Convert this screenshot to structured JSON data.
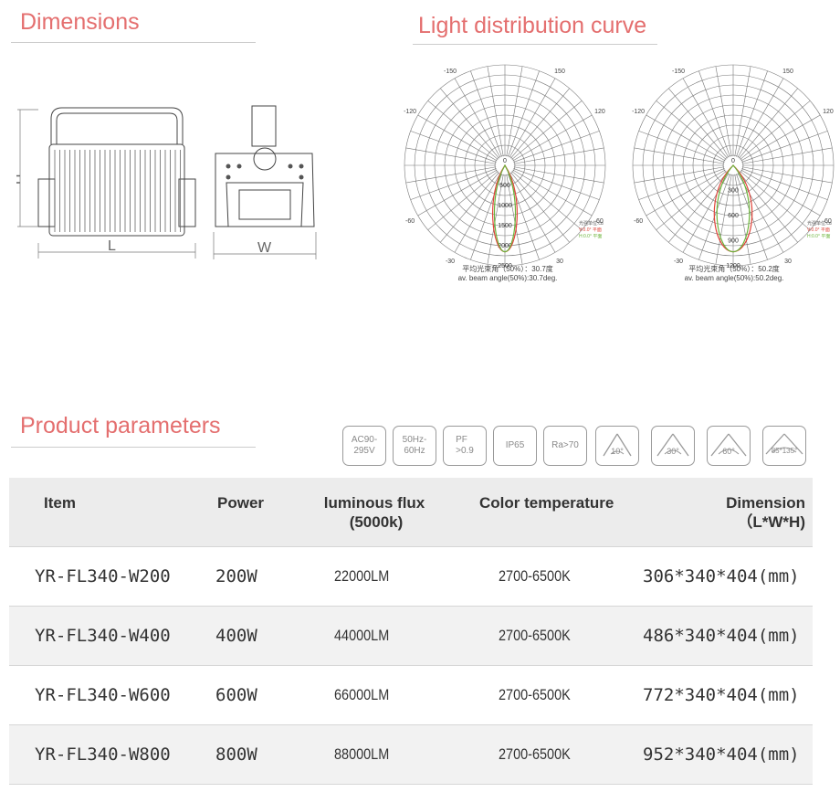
{
  "sections": {
    "dimensions": "Dimensions",
    "light_curve": "Light distribution curve",
    "product_parameters": "Product parameters"
  },
  "drawing_labels": {
    "h": "H",
    "l": "L",
    "w": "W"
  },
  "polar_labels": {
    "top": "-/+180",
    "deg": [
      "-150",
      "150",
      "-120",
      "120",
      "-90",
      "90",
      "-60",
      "60",
      "-30",
      "30",
      "0"
    ]
  },
  "curve1": {
    "rings": [
      "500",
      "1000",
      "1500",
      "2000",
      "2500"
    ],
    "legend": [
      "光强单位:cd",
      "V:0.0° 平面",
      "H:0.0° 平面"
    ],
    "caption_cn": "平均光束角（50%）：30.7度",
    "caption_en": "av. beam angle(50%):30.7deg."
  },
  "curve2": {
    "rings": [
      "300",
      "600",
      "900",
      "1200"
    ],
    "legend": [
      "光强单位:cd",
      "V:0.0° 平面",
      "H:0.0° 平面"
    ],
    "caption_cn": "平均光束角（50%）：50.2度",
    "caption_en": "av. beam angle(50%):50.2deg."
  },
  "badges": [
    {
      "text": "AC90-\n295V"
    },
    {
      "text": "50Hz-\n60Hz"
    },
    {
      "text": "PF\n>0.9"
    },
    {
      "text": "IP65"
    },
    {
      "text": "Ra>70"
    },
    {
      "text": "10°"
    },
    {
      "text": "30°"
    },
    {
      "text": "60°"
    },
    {
      "text": "85*135°"
    }
  ],
  "colors": {
    "title": "#e46f6f",
    "curve_v": "#e0443a",
    "curve_h": "#6bb33a"
  },
  "table": {
    "headers": {
      "item": "Item",
      "power": "Power",
      "flux": "luminous flux",
      "flux_unit": "(5000k)",
      "cct": "Color temperature",
      "dim": "Dimension",
      "dim_unit": "（L*W*H)"
    },
    "rows": [
      {
        "item": "YR-FL340-W200",
        "power": "200W",
        "flux": "22000LM",
        "cct": "2700-6500K",
        "dim": "306*340*404(mm)"
      },
      {
        "item": "YR-FL340-W400",
        "power": "400W",
        "flux": "44000LM",
        "cct": "2700-6500K",
        "dim": "486*340*404(mm)"
      },
      {
        "item": "YR-FL340-W600",
        "power": "600W",
        "flux": "66000LM",
        "cct": "2700-6500K",
        "dim": "772*340*404(mm)"
      },
      {
        "item": "YR-FL340-W800",
        "power": "800W",
        "flux": "88000LM",
        "cct": "2700-6500K",
        "dim": "952*340*404(mm)"
      }
    ]
  }
}
